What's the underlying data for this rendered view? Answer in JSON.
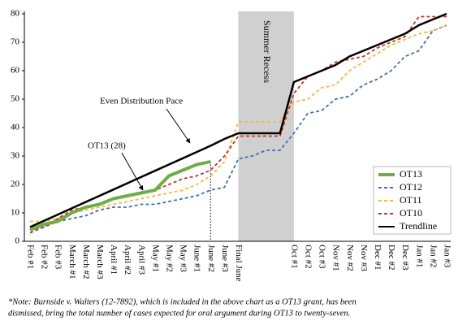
{
  "chart_data": {
    "type": "line",
    "categories": [
      "Feb #1",
      "Feb #2",
      "Feb #3",
      "March #1",
      "March #2",
      "March #3",
      "April #1",
      "April #2",
      "April #3",
      "May #1",
      "May #2",
      "May #3",
      "June #1",
      "June #2",
      "June #3",
      "Final June",
      null,
      null,
      null,
      "Oct #1",
      "Oct #2",
      "Oct #3",
      "Nov #1",
      "Nov #2",
      "Nov #3",
      "Dec #1",
      "Dec #2",
      "Dec #3",
      "Jan #1",
      "Jan #2",
      "Jan #3"
    ],
    "series": [
      {
        "name": "OT13",
        "color": "#70ad47",
        "style": "solid",
        "values": [
          4,
          6,
          7,
          10,
          12,
          13,
          15,
          16,
          17,
          18,
          23,
          25,
          27,
          28,
          null,
          null,
          null,
          null,
          null,
          null,
          null,
          null,
          null,
          null,
          null,
          null,
          null,
          null,
          null,
          null,
          null
        ]
      },
      {
        "name": "OT12",
        "color": "#4a6fa5",
        "style": "dashed",
        "values": [
          4,
          5,
          7,
          8,
          9,
          11,
          12,
          12,
          13,
          13,
          14,
          15,
          16,
          18,
          19,
          29,
          30,
          32,
          32,
          38,
          45,
          46,
          50,
          51,
          55,
          57,
          60,
          65,
          67,
          74,
          76
        ]
      },
      {
        "name": "OT11",
        "color": "#f5b942",
        "style": "dashed",
        "values": [
          7,
          7,
          8,
          10,
          11,
          12,
          13,
          14,
          15,
          16,
          17,
          18,
          20,
          23,
          28,
          42,
          42,
          42,
          42,
          49,
          50,
          54,
          55,
          60,
          63,
          66,
          69,
          71,
          73,
          74,
          76
        ]
      },
      {
        "name": "OT10",
        "color": "#c0392b",
        "style": "dashed",
        "values": [
          3,
          5,
          8,
          11,
          12,
          13,
          15,
          16,
          17,
          18,
          20,
          22,
          23,
          25,
          30,
          37,
          37,
          37,
          37,
          52,
          58,
          60,
          63,
          64,
          65,
          68,
          70,
          72,
          79,
          79,
          79
        ]
      },
      {
        "name": "Trendline",
        "color": "#000000",
        "style": "solid",
        "values": [
          5,
          7.2,
          9.4,
          11.6,
          13.8,
          16,
          18.2,
          20.4,
          22.6,
          24.8,
          27,
          29.2,
          31.4,
          33.6,
          36,
          38,
          38,
          38,
          38,
          56,
          58,
          60,
          62,
          65,
          67,
          69,
          71,
          73,
          76,
          78,
          80
        ]
      }
    ],
    "ylim": [
      0,
      80
    ],
    "yticks": [
      0,
      10,
      20,
      30,
      40,
      50,
      60,
      70,
      80
    ],
    "grid": false,
    "legend": "lower right",
    "recess": {
      "label": "Summer Recess",
      "from": "Final June",
      "to": "Oct #1",
      "color": "#d0d0d0"
    },
    "annotations": [
      "Even Distribution Pace",
      "OT13 (28)"
    ],
    "footnote": [
      "*Note: Burnside v. Walters (12-7892), which is included in the above chart as a OT13 grant, has been",
      "dismissed, bring the total number of cases expected for oral argument during OT13 to twenty-seven."
    ]
  }
}
